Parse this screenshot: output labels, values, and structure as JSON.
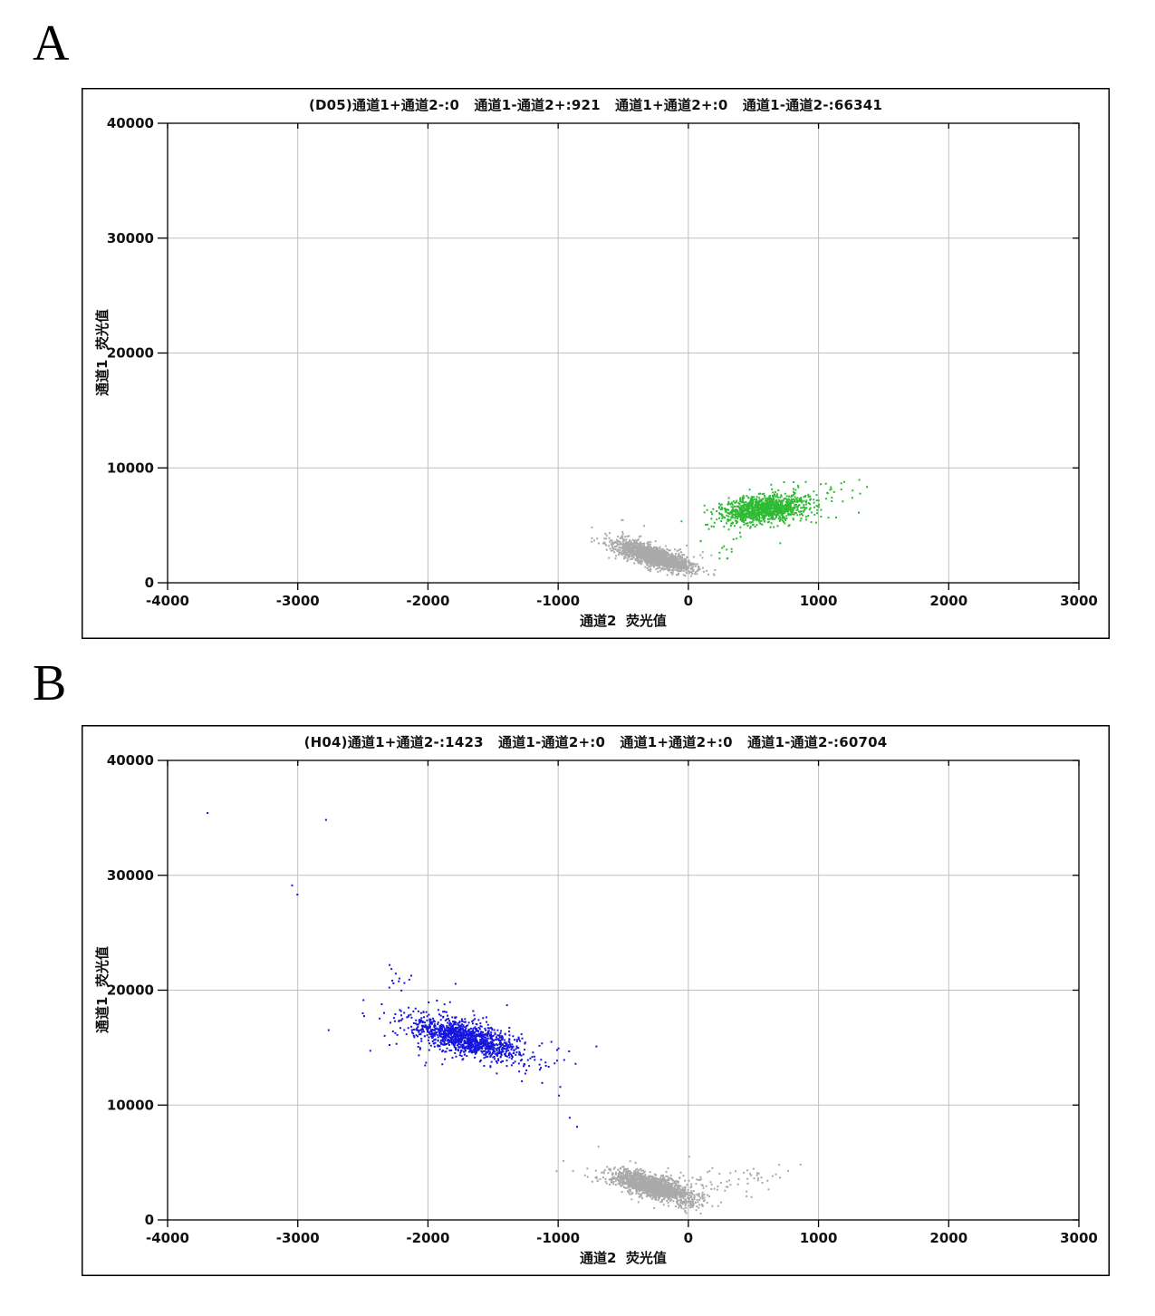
{
  "page": {
    "background": "#ffffff"
  },
  "panels": [
    {
      "label": "A"
    },
    {
      "label": "B"
    }
  ],
  "palette": {
    "ch2_positive_green": "#2eba32",
    "ch1_positive_blue": "#1515dd",
    "negative_gray": "#a9a9a9",
    "grid": "#c0c0c0",
    "axis": "#000000"
  },
  "chart_data": [
    {
      "type": "scatter",
      "panel": "A",
      "well": "D05",
      "title": "(D05)通道1+通道2-:0   通道1-通道2+:921   通道1+通道2+:0   通道1-通道2-:66341",
      "counts": {
        "ch1pos_ch2neg": 0,
        "ch1neg_ch2pos": 921,
        "ch1pos_ch2pos": 0,
        "ch1neg_ch2neg": 66341
      },
      "xlabel": "通道2  荧光值",
      "ylabel": "通道1  荧光值",
      "xlim": [
        -4000,
        3000
      ],
      "ylim": [
        0,
        40000
      ],
      "xticks": [
        -4000,
        -3000,
        -2000,
        -1000,
        0,
        1000,
        2000,
        3000
      ],
      "yticks": [
        0,
        10000,
        20000,
        30000,
        40000
      ],
      "grid": true,
      "grid_color": "#c0c0c0",
      "point_size": 2,
      "clusters": [
        {
          "name": "negative-droplets-main",
          "color": "#a9a9a9",
          "n": 1600,
          "cx": -265,
          "cy": 2350,
          "sx": 140,
          "sy": 620,
          "rho": -0.75,
          "seed": 101
        },
        {
          "name": "negative-droplets-halo",
          "color": "#a9a9a9",
          "n": 90,
          "cx": -330,
          "cy": 2950,
          "sx": 230,
          "sy": 950,
          "rho": -0.65,
          "seed": 102
        },
        {
          "name": "ch2-positive-main",
          "color": "#2eba32",
          "n": 1050,
          "cx": 580,
          "cy": 6500,
          "sx": 155,
          "sy": 560,
          "rho": 0.3,
          "seed": 103
        },
        {
          "name": "ch2-positive-halo",
          "color": "#2eba32",
          "n": 140,
          "cx": 600,
          "cy": 6650,
          "sx": 290,
          "sy": 1050,
          "rho": 0.4,
          "seed": 104
        },
        {
          "name": "ch2-positive-low-tail",
          "color": "#2eba32",
          "n": 14,
          "cx": 300,
          "cy": 3300,
          "sx": 90,
          "sy": 950,
          "rho": 0.85,
          "seed": 105
        }
      ],
      "outliers": [
        {
          "name": "ch2-positive-right-strays",
          "color": "#2eba32",
          "points": [
            [
              1010,
              8660
            ],
            [
              1168,
              8740
            ],
            [
              1064,
              7870
            ],
            [
              1252,
              7480
            ],
            [
              980,
              7240
            ],
            [
              940,
              6200
            ],
            [
              895,
              8850
            ]
          ]
        }
      ]
    },
    {
      "type": "scatter",
      "panel": "B",
      "well": "H04",
      "title": "(H04)通道1+通道2-:1423   通道1-通道2+:0   通道1+通道2+:0   通道1-通道2-:60704",
      "counts": {
        "ch1pos_ch2neg": 1423,
        "ch1neg_ch2pos": 0,
        "ch1pos_ch2pos": 0,
        "ch1neg_ch2neg": 60704
      },
      "xlabel": "通道2  荧光值",
      "ylabel": "通道1  荧光值",
      "xlim": [
        -4000,
        3000
      ],
      "ylim": [
        0,
        40000
      ],
      "xticks": [
        -4000,
        -3000,
        -2000,
        -1000,
        0,
        1000,
        2000,
        3000
      ],
      "yticks": [
        0,
        10000,
        20000,
        30000,
        40000
      ],
      "grid": true,
      "grid_color": "#c0c0c0",
      "point_size": 2,
      "clusters": [
        {
          "name": "ch1-positive-main",
          "color": "#1515dd",
          "n": 1150,
          "cx": -1710,
          "cy": 15900,
          "sx": 210,
          "sy": 900,
          "rho": -0.65,
          "seed": 201
        },
        {
          "name": "ch1-positive-halo",
          "color": "#1515dd",
          "n": 110,
          "cx": -1740,
          "cy": 16100,
          "sx": 380,
          "sy": 1750,
          "rho": -0.55,
          "seed": 202
        },
        {
          "name": "ch1-positive-upper-trail",
          "color": "#1515dd",
          "n": 12,
          "cx": -2280,
          "cy": 20800,
          "sx": 150,
          "sy": 900,
          "rho": -0.4,
          "seed": 203
        },
        {
          "name": "negative-droplets-main",
          "color": "#a9a9a9",
          "n": 1500,
          "cx": -280,
          "cy": 2950,
          "sx": 150,
          "sy": 650,
          "rho": -0.7,
          "seed": 204
        },
        {
          "name": "negative-droplets-halo",
          "color": "#a9a9a9",
          "n": 100,
          "cx": -280,
          "cy": 3100,
          "sx": 260,
          "sy": 1000,
          "rho": -0.5,
          "seed": 205
        },
        {
          "name": "negative-right-tail",
          "color": "#a9a9a9",
          "n": 55,
          "cx": 280,
          "cy": 3500,
          "sx": 220,
          "sy": 650,
          "rho": 0.35,
          "seed": 206
        },
        {
          "name": "negative-low-spike",
          "color": "#a9a9a9",
          "n": 30,
          "cx": -20,
          "cy": 1700,
          "sx": 70,
          "sy": 550,
          "rho": -0.3,
          "seed": 207
        }
      ],
      "outliers": [
        {
          "name": "ch1-positive-isolated",
          "color": "#1515dd",
          "points": [
            [
              -3700,
              35500
            ],
            [
              -2790,
              34900
            ],
            [
              -3050,
              29200
            ],
            [
              -3010,
              28400
            ],
            [
              -2770,
              16600
            ],
            [
              -2450,
              14800
            ],
            [
              -1250,
              13100
            ],
            [
              -1130,
              12000
            ],
            [
              -1000,
              10900
            ],
            [
              -918,
              8980
            ],
            [
              -862,
              8190
            ]
          ]
        },
        {
          "name": "negative-isolated",
          "color": "#a9a9a9",
          "points": [
            [
              855,
              4900
            ],
            [
              760,
              4350
            ],
            [
              -697,
              6460
            ]
          ]
        }
      ]
    }
  ]
}
